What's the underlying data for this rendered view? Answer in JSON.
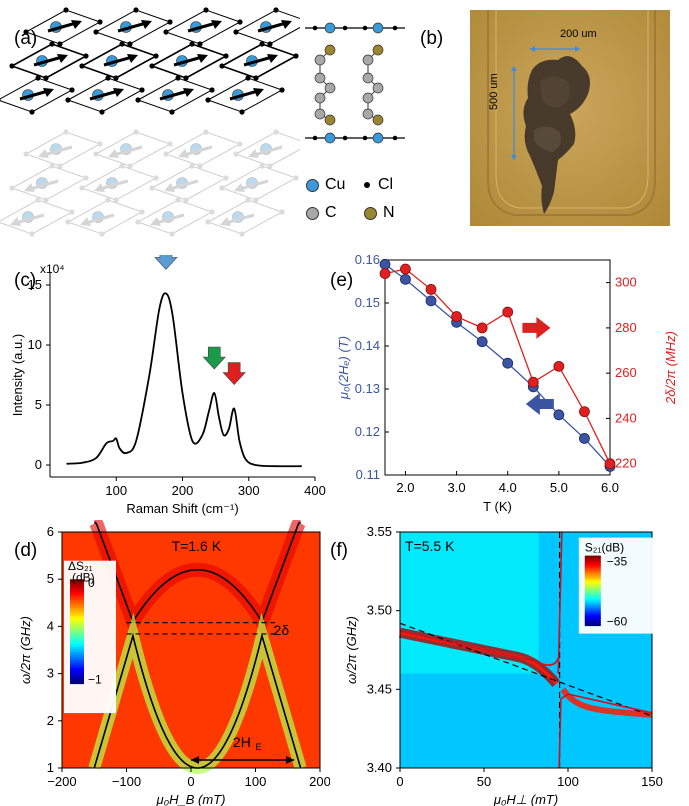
{
  "figure": {
    "panel_labels": [
      "(a)",
      "(b)",
      "(c)",
      "(d)",
      "(e)",
      "(f)"
    ]
  },
  "panel_a": {
    "legend": [
      {
        "symbol": "Cu",
        "color": "#3a9ad9"
      },
      {
        "symbol": "Cl",
        "color": "#000000"
      },
      {
        "symbol": "C",
        "color": "#a8a8a8"
      },
      {
        "symbol": "N",
        "color": "#9b8530"
      }
    ]
  },
  "panel_b": {
    "width_label": "200 um",
    "height_label": "500 um",
    "colors": {
      "background": "#c29a45",
      "crystal": "#3a3028"
    }
  },
  "panel_c": {
    "chart_data": {
      "type": "line",
      "xlabel": "Raman Shift (cm⁻¹)",
      "ylabel": "Intensity (a.u.)",
      "multiplier": "x10⁴",
      "xlim": [
        0,
        400
      ],
      "ylim": [
        -1,
        16
      ],
      "xticks": [
        "100",
        "200",
        "300",
        "400"
      ],
      "yticks": [
        "0",
        "5",
        "10",
        "15"
      ],
      "x": [
        25,
        50,
        70,
        85,
        95,
        100,
        105,
        115,
        130,
        150,
        165,
        175,
        185,
        200,
        215,
        230,
        240,
        248,
        255,
        262,
        270,
        278,
        286,
        295,
        310,
        340,
        380
      ],
      "y": [
        0.1,
        0.2,
        0.6,
        1.8,
        2.0,
        2.2,
        1.4,
        1.0,
        2.0,
        7.5,
        13.0,
        14.3,
        12.5,
        6.0,
        2.0,
        2.5,
        4.5,
        6.0,
        4.0,
        2.5,
        3.0,
        4.7,
        2.0,
        0.5,
        0.0,
        -0.1,
        -0.1
      ],
      "arrows": [
        {
          "x": 175,
          "color": "#5b9bd5"
        },
        {
          "x": 248,
          "color": "#1b9a4a"
        },
        {
          "x": 278,
          "color": "#e02020"
        }
      ]
    }
  },
  "panel_e": {
    "chart_data": {
      "type": "line",
      "xlabel": "T (K)",
      "ylabel_left": "μ₀(2Hₑ) (T)",
      "ylabel_right": "2δ/2π (MHz)",
      "xlim": [
        1.6,
        6.0
      ],
      "ylim_left": [
        0.11,
        0.16
      ],
      "ylim_right": [
        215,
        310
      ],
      "xticks": [
        "2.0",
        "3.0",
        "4.0",
        "5.0",
        "6.0"
      ],
      "yticks_left": [
        "0.11",
        "0.12",
        "0.13",
        "0.14",
        "0.15",
        "0.16"
      ],
      "yticks_right": [
        "220",
        "240",
        "260",
        "280",
        "300"
      ],
      "series": [
        {
          "axis": "left",
          "color": "#3b55a3",
          "x": [
            1.6,
            2.0,
            2.5,
            3.0,
            3.5,
            4.0,
            4.5,
            5.0,
            5.5,
            6.0
          ],
          "y": [
            0.159,
            0.1555,
            0.1505,
            0.1455,
            0.141,
            0.136,
            0.1305,
            0.124,
            0.1185,
            0.112
          ]
        },
        {
          "axis": "right",
          "color": "#e02020",
          "x": [
            1.6,
            2.0,
            2.5,
            3.0,
            3.5,
            4.0,
            4.5,
            5.0,
            5.5,
            6.0
          ],
          "y": [
            304,
            306,
            297,
            285,
            280,
            287,
            256,
            263,
            243,
            220
          ]
        }
      ]
    }
  },
  "panel_d": {
    "chart_data": {
      "type": "heatmap",
      "annotation": "T=1.6 K",
      "gap_label": "2δ",
      "exchange_label": "2H",
      "exchange_subscript": "E",
      "xlabel": "μ₀H_B (mT)",
      "ylabel": "ω/2π (GHz)",
      "xlim": [
        -200,
        200
      ],
      "ylim": [
        1,
        6
      ],
      "xticks": [
        "−200",
        "−100",
        "0",
        "100",
        "200"
      ],
      "yticks": [
        "1",
        "2",
        "3",
        "4",
        "5",
        "6"
      ],
      "colorbar": {
        "title": "ΔS₂₁",
        "unit": "(dB)",
        "max": "0",
        "min": "−1"
      },
      "dashed_gap_lines_ghz": [
        4.08,
        3.84
      ],
      "exchange_arrow_mT": [
        0,
        160
      ]
    }
  },
  "panel_f": {
    "chart_data": {
      "type": "heatmap",
      "annotation": "T=5.5 K",
      "xlabel": "μ₀H⊥ (mT)",
      "ylabel": "ω/2π (GHz)",
      "xlim": [
        0,
        150
      ],
      "ylim": [
        3.4,
        3.55
      ],
      "xticks": [
        "0",
        "50",
        "100",
        "150"
      ],
      "yticks": [
        "3.40",
        "3.45",
        "3.50",
        "3.55"
      ],
      "colorbar": {
        "title": "S₂₁(dB)",
        "max": "−35",
        "min": "−60"
      },
      "resonance_field_mT": 95
    }
  }
}
